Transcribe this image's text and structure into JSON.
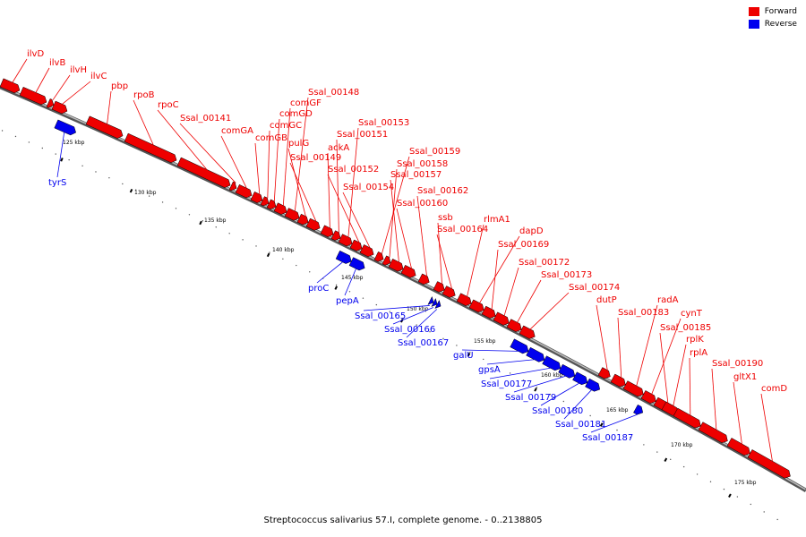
{
  "caption": "Streptococcus salivarius 57.I, complete genome. - 0..2138805",
  "legend": [
    {
      "label": "Forward",
      "color": "#ee0000"
    },
    {
      "label": "Reverse",
      "color": "#0000ee"
    }
  ],
  "scale_ticks": [
    "125 kbp",
    "130 kbp",
    "135 kbp",
    "140 kbp",
    "145 kbp",
    "150 kbp",
    "155 kbp",
    "160 kbp",
    "165 kbp",
    "170 kbp",
    "175 kbp"
  ],
  "forward_genes": [
    "ilvD",
    "ilvB",
    "ilvH",
    "ilvC",
    "pbp",
    "rpoB",
    "rpoC",
    "Ssal_00141",
    "comGA",
    "comGB",
    "comGC",
    "comGD",
    "comGF",
    "Ssal_00148",
    "pulG",
    "Ssal_00149",
    "ackA",
    "Ssal_00151",
    "Ssal_00153",
    "Ssal_00152",
    "Ssal_00154",
    "Ssal_00159",
    "Ssal_00158",
    "Ssal_00157",
    "Ssal_00160",
    "Ssal_00162",
    "ssb",
    "Ssal_00164",
    "rlmA1",
    "dapD",
    "Ssal_00169",
    "Ssal_00172",
    "Ssal_00173",
    "Ssal_00174",
    "dutP",
    "Ssal_00183",
    "radA",
    "cynT",
    "Ssal_00185",
    "rplK",
    "rplA",
    "Ssal_00190",
    "gltX1",
    "comD"
  ],
  "reverse_genes": [
    "tyrS",
    "proC",
    "pepA",
    "Ssal_00165",
    "Ssal_00166",
    "Ssal_00167",
    "galU",
    "gpsA",
    "Ssal_00177",
    "Ssal_00179",
    "Ssal_00180",
    "Ssal_00181",
    "Ssal_00187"
  ],
  "colors": {
    "forward": "#ee0000",
    "reverse": "#0000ee",
    "backbone": "#808080"
  }
}
